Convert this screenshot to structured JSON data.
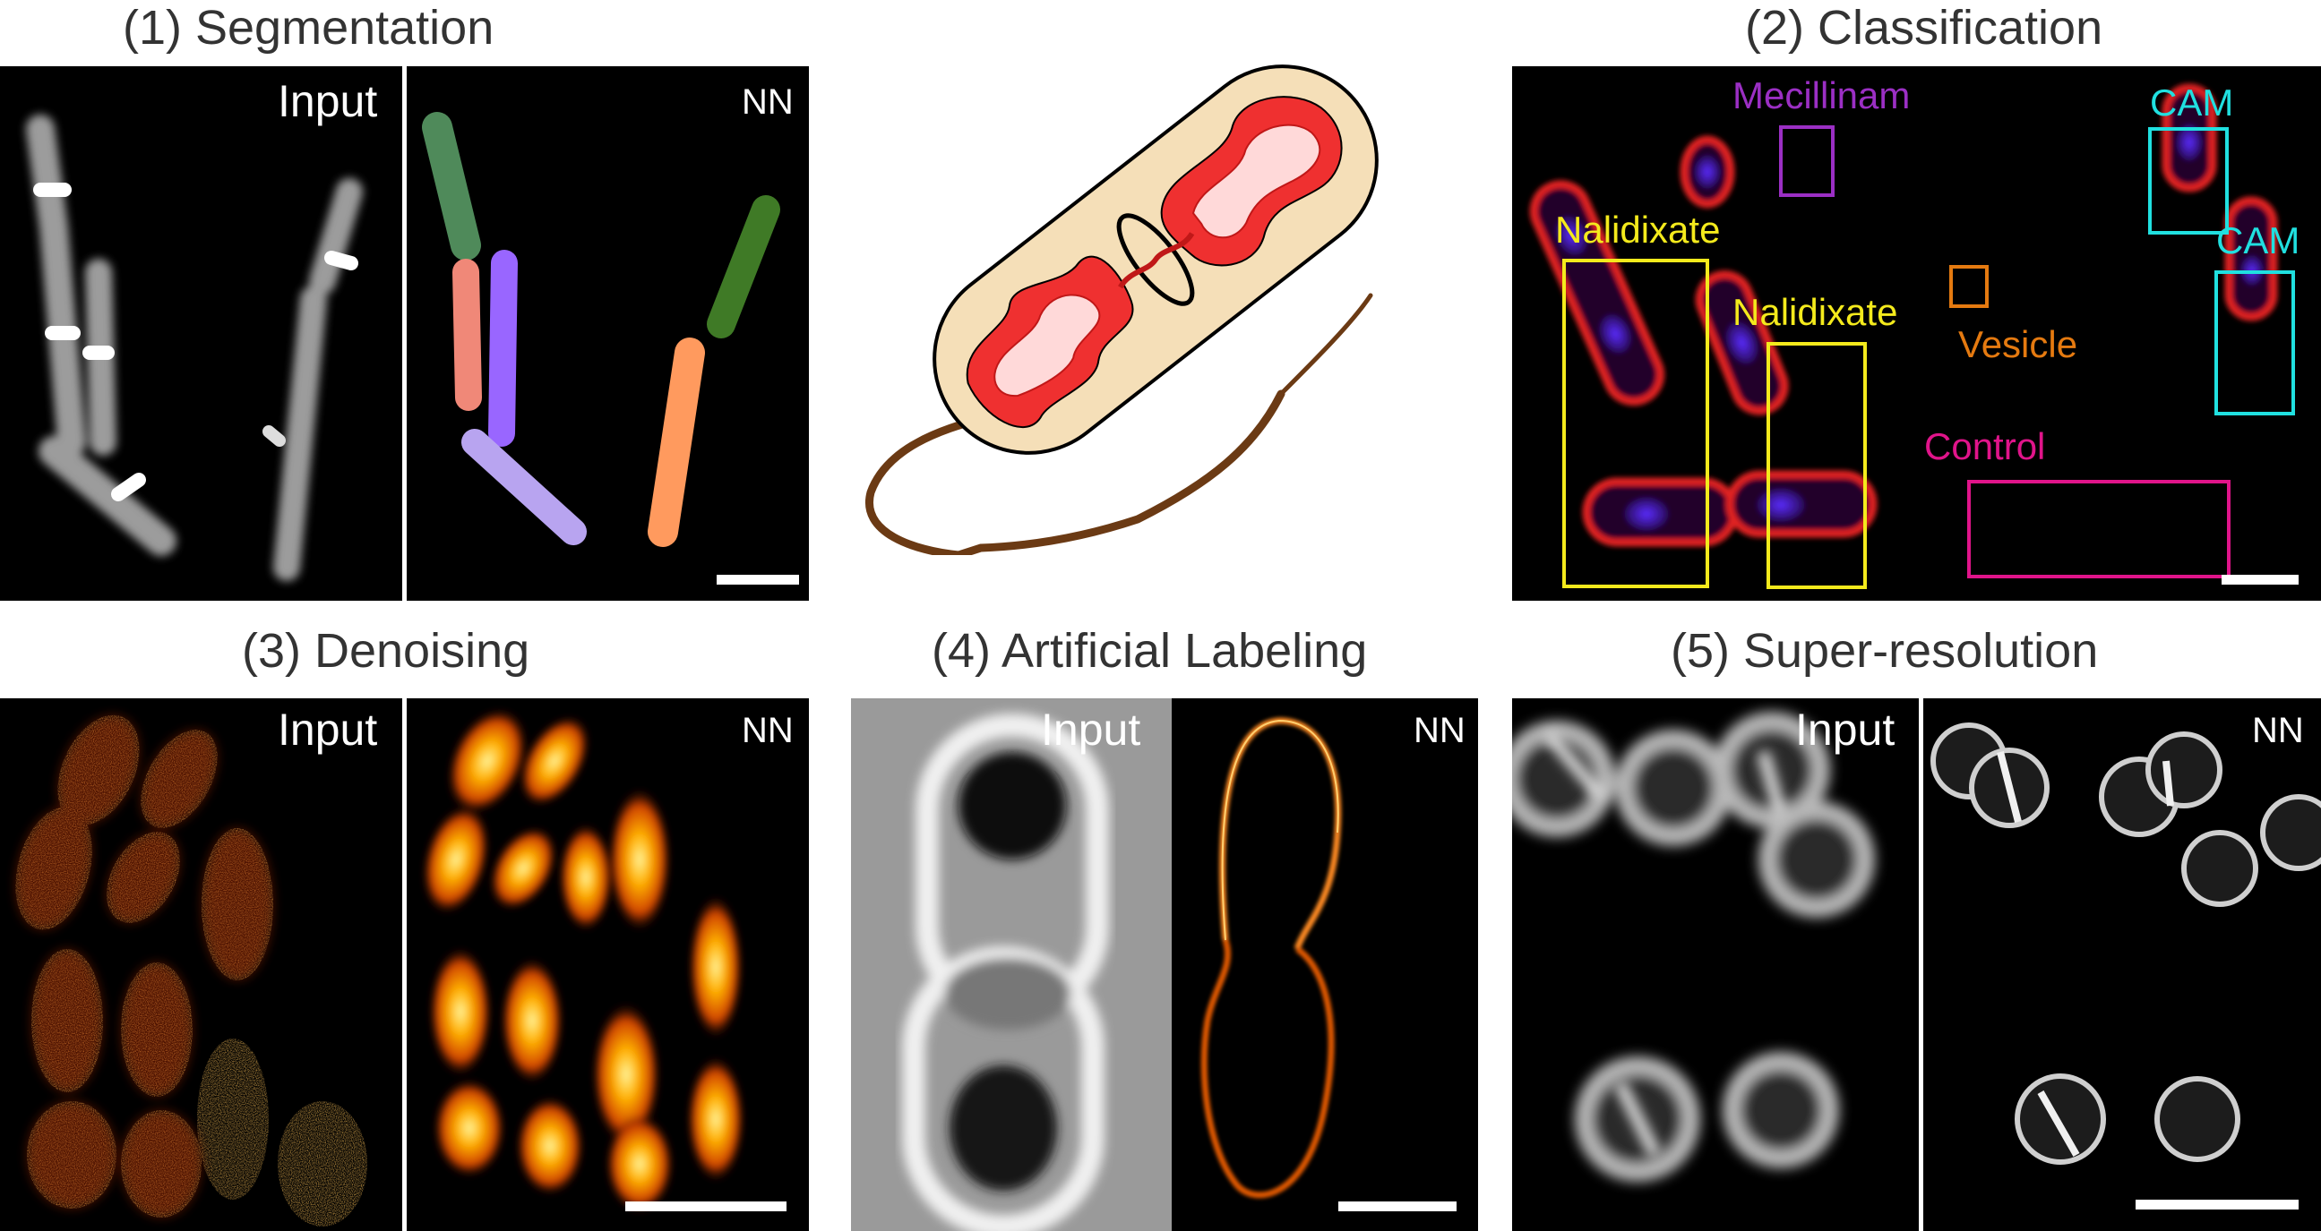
{
  "titles": {
    "segmentation": "(1) Segmentation",
    "classification": "(2) Classification",
    "denoising": "(3) Denoising",
    "artificial_labeling": "(4) Artificial Labeling",
    "super_resolution": "(5) Super-resolution"
  },
  "tags": {
    "input": "Input",
    "nn": "NN"
  },
  "classes": {
    "mecillinam": "Mecillinam",
    "cam_a": "CAM",
    "cam_b": "CAM",
    "nalidixate_a": "Nalidixate",
    "nalidixate_b": "Nalidixate",
    "vesicle": "Vesicle",
    "control": "Control"
  },
  "colors": {
    "mecillinam": "#9b2fc4",
    "cam": "#20e0e0",
    "nalidixate": "#f4ea1c",
    "vesicle": "#e57a10",
    "control": "#e0148a",
    "seg_green_a": "#4f8a5a",
    "seg_salmon": "#f08878",
    "seg_violet": "#9966ff",
    "seg_lavender": "#b8a4f0",
    "seg_green_b": "#3f7a26",
    "seg_orange": "#ff9a5e",
    "cell_fill": "#f5dfb8",
    "flagellum": "#6b3a14"
  }
}
